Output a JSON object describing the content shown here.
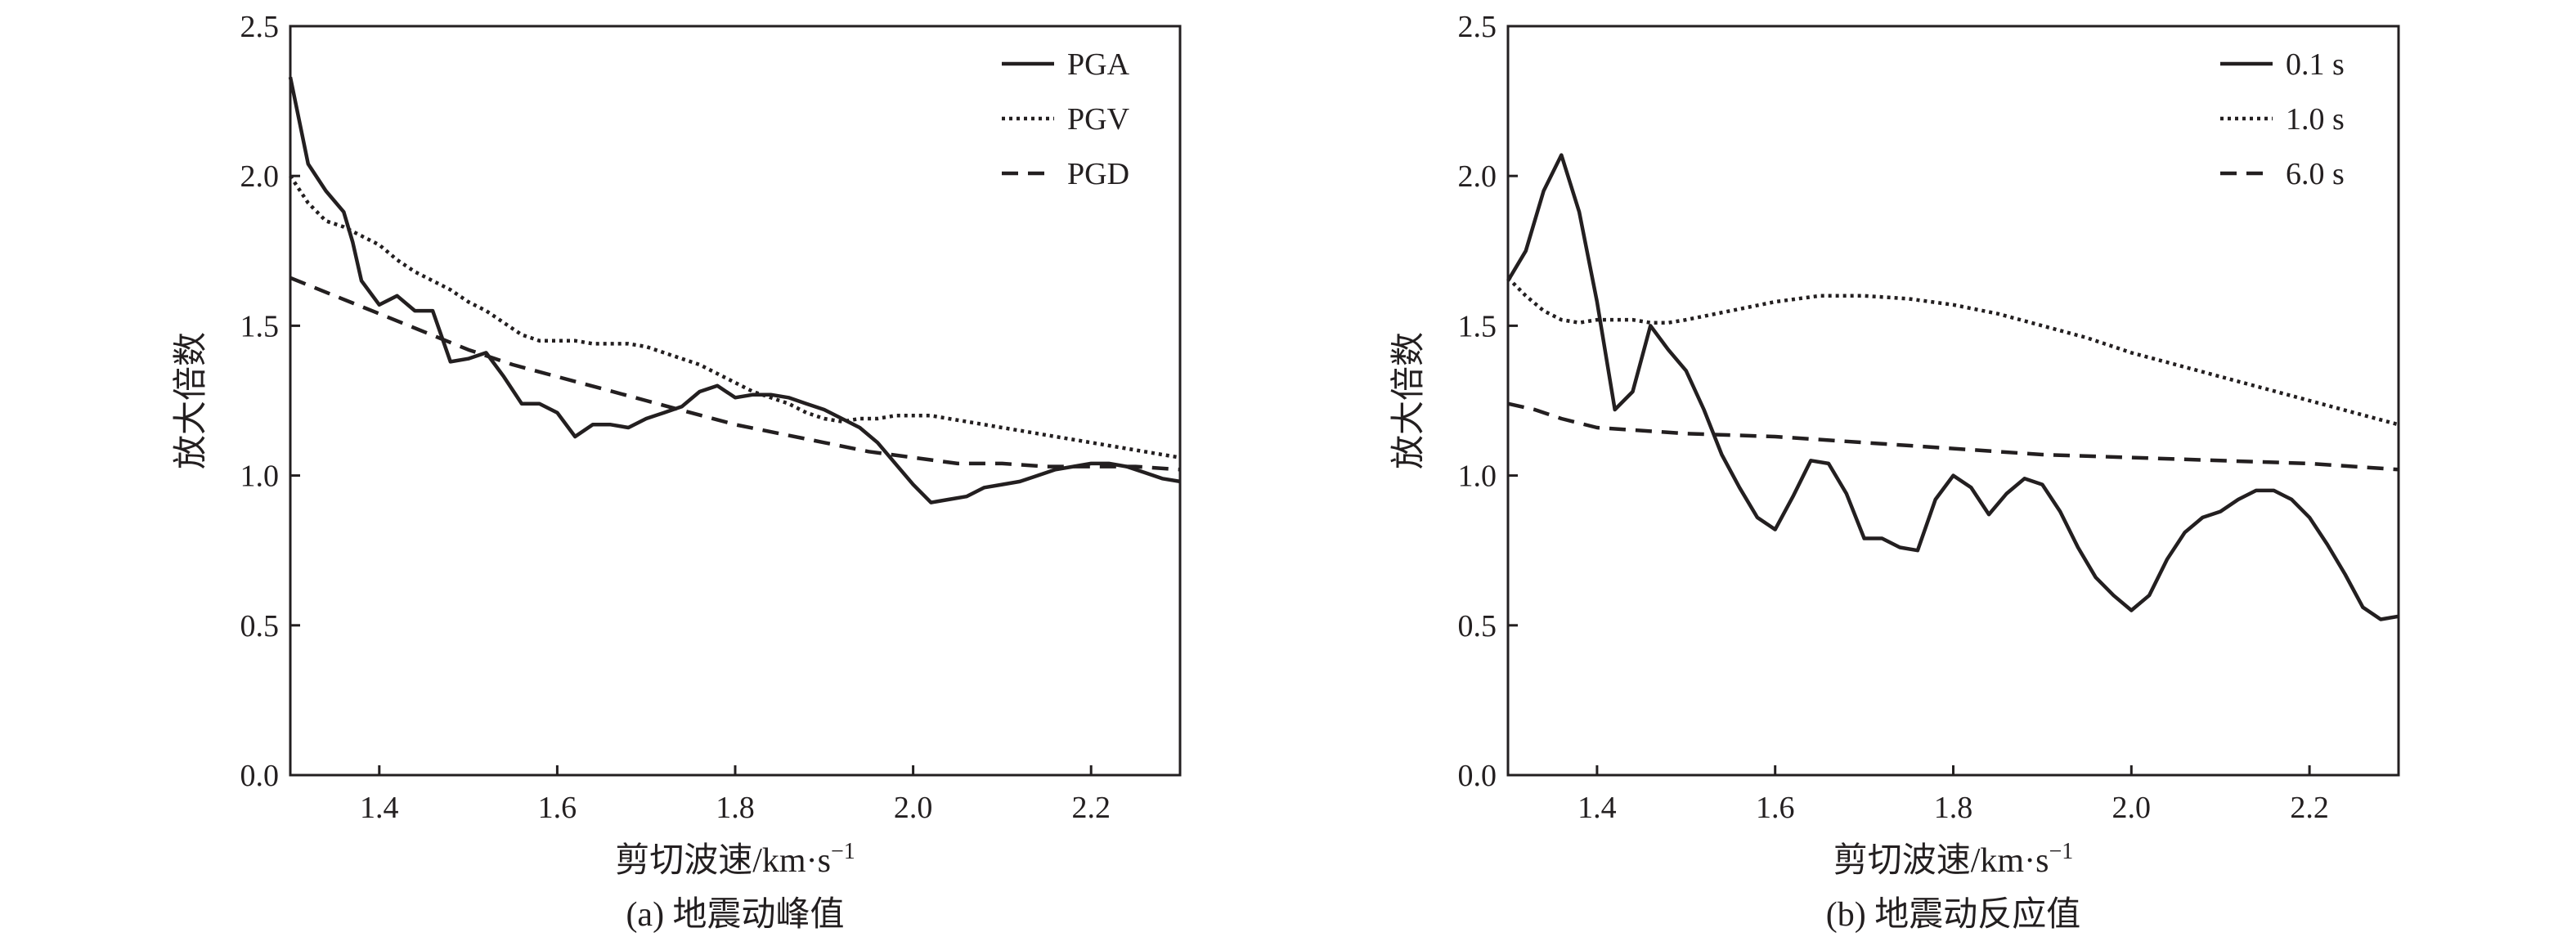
{
  "chart_data": [
    {
      "type": "line",
      "caption": "(a) 地震动峰值",
      "xlabel": "剪切波速/km·s",
      "xlabel_sup": "−1",
      "ylabel": "放大倍数",
      "xlim": [
        1.3,
        2.3
      ],
      "ylim": [
        0.0,
        2.5
      ],
      "xticks": [
        "1.4",
        "1.6",
        "1.8",
        "2.0",
        "2.2"
      ],
      "yticks": [
        "0.0",
        "0.5",
        "1.0",
        "1.5",
        "2.0",
        "2.5"
      ],
      "legend_position": "top-right",
      "series": [
        {
          "name": "PGA",
          "style": "solid",
          "x": [
            1.3,
            1.32,
            1.34,
            1.36,
            1.37,
            1.38,
            1.4,
            1.42,
            1.44,
            1.46,
            1.48,
            1.5,
            1.52,
            1.54,
            1.56,
            1.58,
            1.6,
            1.62,
            1.64,
            1.66,
            1.68,
            1.7,
            1.72,
            1.74,
            1.76,
            1.78,
            1.8,
            1.82,
            1.84,
            1.86,
            1.88,
            1.9,
            1.92,
            1.94,
            1.96,
            1.98,
            2.0,
            2.02,
            2.04,
            2.06,
            2.08,
            2.1,
            2.12,
            2.14,
            2.16,
            2.18,
            2.2,
            2.22,
            2.24,
            2.26,
            2.28,
            2.3
          ],
          "y": [
            2.33,
            2.04,
            1.95,
            1.88,
            1.78,
            1.65,
            1.57,
            1.6,
            1.55,
            1.55,
            1.38,
            1.39,
            1.41,
            1.33,
            1.24,
            1.24,
            1.21,
            1.13,
            1.17,
            1.17,
            1.16,
            1.19,
            1.21,
            1.23,
            1.28,
            1.3,
            1.26,
            1.27,
            1.27,
            1.26,
            1.24,
            1.22,
            1.19,
            1.16,
            1.11,
            1.04,
            0.97,
            0.91,
            0.92,
            0.93,
            0.96,
            0.97,
            0.98,
            1.0,
            1.02,
            1.03,
            1.04,
            1.04,
            1.03,
            1.01,
            0.99,
            0.98
          ]
        },
        {
          "name": "PGV",
          "style": "dotted",
          "x": [
            1.3,
            1.32,
            1.34,
            1.36,
            1.38,
            1.4,
            1.42,
            1.44,
            1.46,
            1.48,
            1.5,
            1.52,
            1.54,
            1.56,
            1.58,
            1.6,
            1.62,
            1.64,
            1.66,
            1.68,
            1.7,
            1.72,
            1.74,
            1.76,
            1.78,
            1.8,
            1.82,
            1.84,
            1.86,
            1.88,
            1.9,
            1.92,
            1.94,
            1.96,
            1.98,
            2.0,
            2.02,
            2.04,
            2.06,
            2.08,
            2.1,
            2.12,
            2.14,
            2.16,
            2.18,
            2.2,
            2.22,
            2.24,
            2.26,
            2.28,
            2.3
          ],
          "y": [
            2.0,
            1.91,
            1.85,
            1.83,
            1.8,
            1.77,
            1.72,
            1.68,
            1.65,
            1.62,
            1.58,
            1.55,
            1.51,
            1.47,
            1.45,
            1.45,
            1.45,
            1.44,
            1.44,
            1.44,
            1.43,
            1.41,
            1.39,
            1.37,
            1.34,
            1.31,
            1.28,
            1.26,
            1.24,
            1.21,
            1.19,
            1.18,
            1.19,
            1.19,
            1.2,
            1.2,
            1.2,
            1.19,
            1.18,
            1.17,
            1.16,
            1.15,
            1.14,
            1.13,
            1.12,
            1.11,
            1.1,
            1.09,
            1.08,
            1.07,
            1.06
          ]
        },
        {
          "name": "PGD",
          "style": "dashed",
          "x": [
            1.3,
            1.35,
            1.4,
            1.45,
            1.5,
            1.55,
            1.6,
            1.65,
            1.7,
            1.75,
            1.8,
            1.85,
            1.9,
            1.95,
            2.0,
            2.05,
            2.1,
            2.15,
            2.2,
            2.25,
            2.3
          ],
          "y": [
            1.66,
            1.6,
            1.54,
            1.48,
            1.42,
            1.37,
            1.33,
            1.29,
            1.25,
            1.21,
            1.17,
            1.14,
            1.11,
            1.08,
            1.06,
            1.04,
            1.04,
            1.03,
            1.03,
            1.03,
            1.02
          ]
        }
      ]
    },
    {
      "type": "line",
      "caption": "(b) 地震动反应值",
      "xlabel": "剪切波速/km·s",
      "xlabel_sup": "−1",
      "ylabel": "放大倍数",
      "xlim": [
        1.3,
        2.3
      ],
      "ylim": [
        0.0,
        2.5
      ],
      "xticks": [
        "1.4",
        "1.6",
        "1.8",
        "2.0",
        "2.2"
      ],
      "yticks": [
        "0.0",
        "0.5",
        "1.0",
        "1.5",
        "2.0",
        "2.5"
      ],
      "legend_position": "top-right",
      "series": [
        {
          "name": "0.1 s",
          "style": "solid",
          "x": [
            1.3,
            1.32,
            1.34,
            1.36,
            1.38,
            1.4,
            1.42,
            1.44,
            1.46,
            1.48,
            1.5,
            1.52,
            1.54,
            1.56,
            1.58,
            1.6,
            1.62,
            1.64,
            1.66,
            1.68,
            1.7,
            1.72,
            1.74,
            1.76,
            1.78,
            1.8,
            1.82,
            1.84,
            1.86,
            1.88,
            1.9,
            1.92,
            1.94,
            1.96,
            1.98,
            2.0,
            2.02,
            2.04,
            2.06,
            2.08,
            2.1,
            2.12,
            2.14,
            2.16,
            2.18,
            2.2,
            2.22,
            2.24,
            2.26,
            2.28,
            2.3
          ],
          "y": [
            1.65,
            1.75,
            1.95,
            2.07,
            1.88,
            1.58,
            1.22,
            1.28,
            1.5,
            1.42,
            1.35,
            1.22,
            1.07,
            0.96,
            0.86,
            0.82,
            0.93,
            1.05,
            1.04,
            0.94,
            0.79,
            0.79,
            0.76,
            0.75,
            0.92,
            1.0,
            0.96,
            0.87,
            0.94,
            0.99,
            0.97,
            0.88,
            0.76,
            0.66,
            0.6,
            0.55,
            0.6,
            0.72,
            0.81,
            0.86,
            0.88,
            0.92,
            0.95,
            0.95,
            0.92,
            0.86,
            0.77,
            0.67,
            0.56,
            0.52,
            0.53
          ]
        },
        {
          "name": "1.0 s",
          "style": "dotted",
          "x": [
            1.3,
            1.32,
            1.34,
            1.36,
            1.38,
            1.4,
            1.42,
            1.44,
            1.46,
            1.48,
            1.5,
            1.55,
            1.6,
            1.65,
            1.7,
            1.75,
            1.8,
            1.85,
            1.9,
            1.95,
            2.0,
            2.05,
            2.1,
            2.15,
            2.2,
            2.25,
            2.3
          ],
          "y": [
            1.66,
            1.6,
            1.55,
            1.52,
            1.51,
            1.52,
            1.52,
            1.52,
            1.51,
            1.51,
            1.52,
            1.55,
            1.58,
            1.6,
            1.6,
            1.59,
            1.57,
            1.54,
            1.5,
            1.46,
            1.41,
            1.37,
            1.33,
            1.29,
            1.25,
            1.21,
            1.17
          ]
        },
        {
          "name": "6.0 s",
          "style": "dashed",
          "x": [
            1.3,
            1.33,
            1.36,
            1.4,
            1.45,
            1.5,
            1.6,
            1.7,
            1.8,
            1.9,
            2.0,
            2.1,
            2.2,
            2.3
          ],
          "y": [
            1.24,
            1.22,
            1.19,
            1.16,
            1.15,
            1.14,
            1.13,
            1.11,
            1.09,
            1.07,
            1.06,
            1.05,
            1.04,
            1.02
          ]
        }
      ]
    }
  ]
}
